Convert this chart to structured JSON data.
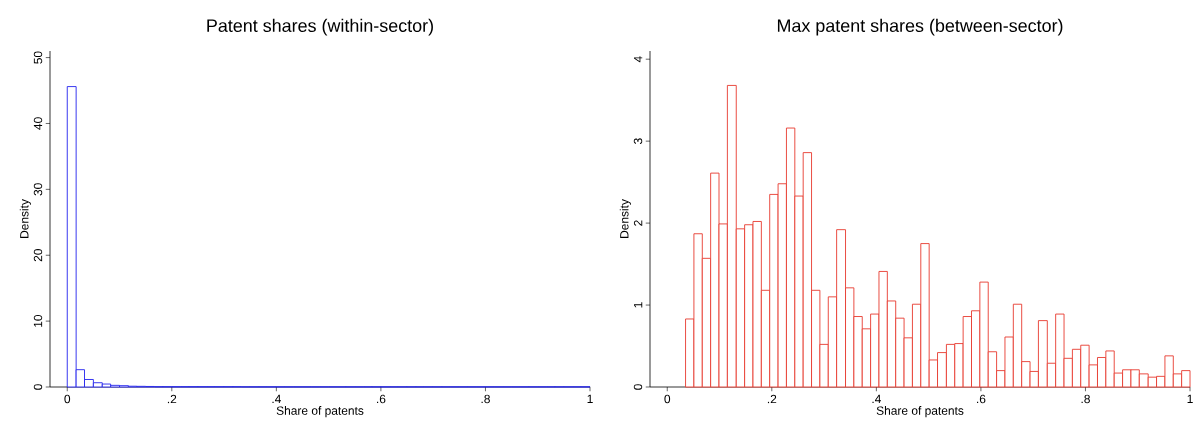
{
  "chart_data": [
    {
      "type": "histogram",
      "title": "Patent shares (within-sector)",
      "xlabel": "Share of patents",
      "ylabel": "Density",
      "color": "#2222ee",
      "bins": [
        0,
        0.017,
        0.033,
        0.05,
        0.067,
        0.083,
        0.1,
        0.117,
        0.133,
        0.15,
        0.167,
        0.183,
        0.2,
        0.217,
        0.233,
        0.25,
        0.267,
        0.283,
        0.3,
        0.317,
        0.333,
        0.35,
        0.367,
        0.383,
        0.4,
        0.417,
        0.433,
        0.45,
        0.467,
        0.483,
        0.5,
        0.517,
        0.533,
        0.55,
        0.567,
        0.583,
        0.6,
        0.617,
        0.633,
        0.65,
        0.667,
        0.683,
        0.7,
        0.717,
        0.733,
        0.75,
        0.767,
        0.783,
        0.8,
        0.817,
        0.833,
        0.85,
        0.867,
        0.883,
        0.9,
        0.917,
        0.933,
        0.95,
        0.967,
        0.983,
        1
      ],
      "values": [
        45.6,
        2.63,
        1.14,
        0.65,
        0.45,
        0.25,
        0.2,
        0.12,
        0.1,
        0.08,
        0.05,
        0.05,
        0.05,
        0.05,
        0.05,
        0.05,
        0.05,
        0.05,
        0.05,
        0.05,
        0.03,
        0.03,
        0.03,
        0.03,
        0.03,
        0.03,
        0.03,
        0.03,
        0.03,
        0.03,
        0.03,
        0.03,
        0.03,
        0.03,
        0.03,
        0.03,
        0.03,
        0.03,
        0.03,
        0.03,
        0.03,
        0.03,
        0.03,
        0.03,
        0.03,
        0.03,
        0.03,
        0.03,
        0.03,
        0.03,
        0.03,
        0.03,
        0.03,
        0.03,
        0.03,
        0.03,
        0.03,
        0.03,
        0.03,
        0.03
      ],
      "xlim": [
        -0.033,
        1
      ],
      "ylim": [
        0,
        51
      ],
      "xticks": [
        0,
        {
          "value": 0.2,
          "label": ".2"
        },
        {
          "value": 0.4,
          "label": ".4"
        },
        {
          "value": 0.6,
          "label": ".6"
        },
        {
          "value": 0.8,
          "label": ".8"
        },
        1
      ],
      "yticks": [
        0,
        10,
        20,
        30,
        40,
        50
      ]
    },
    {
      "type": "histogram",
      "title": "Max patent shares (between-sector)",
      "xlabel": "Share of patents",
      "ylabel": "Density",
      "color": "#e8392e",
      "bins": [
        0.035,
        0.051,
        0.067,
        0.083,
        0.099,
        0.115,
        0.132,
        0.148,
        0.164,
        0.18,
        0.196,
        0.212,
        0.228,
        0.244,
        0.26,
        0.276,
        0.292,
        0.308,
        0.324,
        0.341,
        0.357,
        0.373,
        0.389,
        0.405,
        0.421,
        0.437,
        0.453,
        0.469,
        0.485,
        0.501,
        0.517,
        0.534,
        0.55,
        0.566,
        0.582,
        0.598,
        0.614,
        0.63,
        0.646,
        0.662,
        0.678,
        0.694,
        0.71,
        0.727,
        0.743,
        0.759,
        0.775,
        0.791,
        0.807,
        0.823,
        0.839,
        0.855,
        0.871,
        0.887,
        0.903,
        0.92,
        0.936,
        0.952,
        0.968,
        0.984,
        1.0
      ],
      "values": [
        0.83,
        1.87,
        1.57,
        2.61,
        1.99,
        3.68,
        1.93,
        1.98,
        2.02,
        1.18,
        2.35,
        2.48,
        3.16,
        2.33,
        2.86,
        1.18,
        0.52,
        1.1,
        1.92,
        1.21,
        0.86,
        0.71,
        0.89,
        1.41,
        1.05,
        0.84,
        0.6,
        1.01,
        1.75,
        0.33,
        0.42,
        0.52,
        0.53,
        0.86,
        0.93,
        1.28,
        0.43,
        0.2,
        0.61,
        1.01,
        0.31,
        0.19,
        0.81,
        0.29,
        0.89,
        0.35,
        0.46,
        0.51,
        0.27,
        0.36,
        0.44,
        0.17,
        0.21,
        0.21,
        0.16,
        0.12,
        0.13,
        0.38,
        0.16,
        0.2
      ],
      "xlim": [
        -0.033,
        1
      ],
      "ylim": [
        0,
        4.1
      ],
      "xticks": [
        0,
        {
          "value": 0.2,
          "label": ".2"
        },
        {
          "value": 0.4,
          "label": ".4"
        },
        {
          "value": 0.6,
          "label": ".6"
        },
        {
          "value": 0.8,
          "label": ".8"
        },
        1
      ],
      "yticks": [
        0,
        1,
        2,
        3,
        4
      ]
    }
  ]
}
